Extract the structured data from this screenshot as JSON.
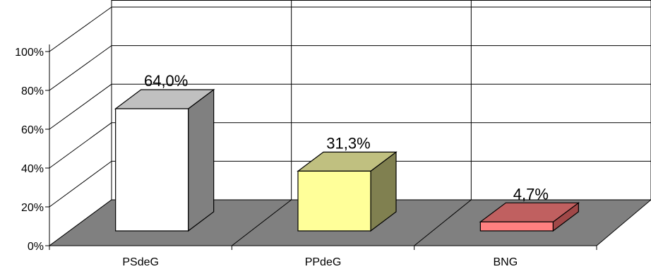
{
  "chart_data": {
    "type": "bar",
    "three_d": true,
    "categories": [
      "PSdeG",
      "PPdeG",
      "BNG"
    ],
    "values": [
      64.0,
      31.3,
      4.7
    ],
    "data_labels": [
      "64,0%",
      "31,3%",
      "4,7%"
    ],
    "ylim": [
      0,
      100
    ],
    "yticks": [
      0,
      20,
      40,
      60,
      80,
      100
    ],
    "ytick_labels": [
      "0%",
      "20%",
      "40%",
      "60%",
      "80%",
      "100%"
    ],
    "grid": true,
    "legend": "none",
    "colors": {
      "bars_front": [
        "#ffffff",
        "#ffff99",
        "#ff8080"
      ],
      "bars_top": [
        "#c0c0c0",
        "#c0c080",
        "#c06060"
      ],
      "bars_side": [
        "#808080",
        "#808050",
        "#a04848"
      ],
      "floor": "#808080",
      "gridline": "#000000"
    }
  }
}
